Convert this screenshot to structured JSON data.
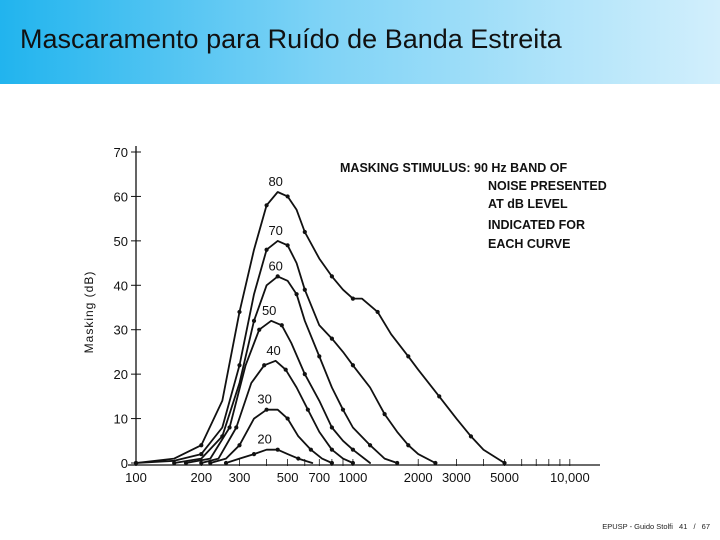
{
  "slide": {
    "title": "Mascaramento para Ruído de Banda Estreita",
    "footer_source": "EPUSP - Guido Stolfi",
    "page_number": "41",
    "page_separator": "/",
    "page_total": "67",
    "accent_color": "#21b4ee"
  },
  "chart_data": {
    "type": "line",
    "title": "",
    "xlabel": "",
    "ylabel": "Masking (dB)",
    "xscale": "log",
    "xlim": [
      100,
      12000
    ],
    "ylim": [
      0,
      70
    ],
    "x_ticks": [
      100,
      200,
      300,
      500,
      700,
      1000,
      2000,
      3000,
      5000,
      10000
    ],
    "x_tick_labels": [
      "100",
      "200",
      "300",
      "500",
      "700",
      "1000",
      "2000",
      "3000",
      "5000",
      "10,000"
    ],
    "y_ticks": [
      0,
      10,
      20,
      30,
      40,
      50,
      60,
      70
    ],
    "y_tick_labels": [
      "0",
      "10",
      "20",
      "30",
      "40",
      "50",
      "60",
      "70"
    ],
    "annotation": [
      "MASKING STIMULUS: 90 Hz BAND OF",
      "NOISE PRESENTED",
      "AT dB LEVEL",
      "INDICATED FOR",
      "EACH CURVE"
    ],
    "series": [
      {
        "name": "80",
        "points": [
          [
            100,
            0
          ],
          [
            150,
            1
          ],
          [
            200,
            4
          ],
          [
            250,
            14
          ],
          [
            300,
            34
          ],
          [
            350,
            48
          ],
          [
            400,
            58
          ],
          [
            450,
            61
          ],
          [
            500,
            60
          ],
          [
            550,
            57
          ],
          [
            600,
            52
          ],
          [
            700,
            46
          ],
          [
            800,
            42
          ],
          [
            900,
            39
          ],
          [
            1000,
            37
          ],
          [
            1100,
            37
          ],
          [
            1300,
            34
          ],
          [
            1500,
            29
          ],
          [
            1800,
            24
          ],
          [
            2000,
            21
          ],
          [
            2500,
            15
          ],
          [
            3000,
            10
          ],
          [
            3500,
            6
          ],
          [
            4000,
            3
          ],
          [
            5000,
            0
          ]
        ]
      },
      {
        "name": "70",
        "points": [
          [
            100,
            0
          ],
          [
            150,
            0.5
          ],
          [
            200,
            2
          ],
          [
            250,
            8
          ],
          [
            300,
            22
          ],
          [
            350,
            38
          ],
          [
            400,
            48
          ],
          [
            450,
            50
          ],
          [
            500,
            49
          ],
          [
            550,
            45
          ],
          [
            600,
            39
          ],
          [
            700,
            31
          ],
          [
            800,
            28
          ],
          [
            900,
            25
          ],
          [
            1000,
            22
          ],
          [
            1200,
            17
          ],
          [
            1400,
            11
          ],
          [
            1600,
            7
          ],
          [
            1800,
            4
          ],
          [
            2000,
            2
          ],
          [
            2400,
            0
          ]
        ]
      },
      {
        "name": "60",
        "points": [
          [
            150,
            0
          ],
          [
            200,
            1
          ],
          [
            250,
            6
          ],
          [
            300,
            18
          ],
          [
            350,
            32
          ],
          [
            400,
            40
          ],
          [
            450,
            42
          ],
          [
            500,
            41
          ],
          [
            550,
            38
          ],
          [
            600,
            32
          ],
          [
            700,
            24
          ],
          [
            800,
            17
          ],
          [
            900,
            12
          ],
          [
            1000,
            8
          ],
          [
            1200,
            4
          ],
          [
            1400,
            1
          ],
          [
            1600,
            0
          ]
        ]
      },
      {
        "name": "50",
        "points": [
          [
            170,
            0
          ],
          [
            220,
            1
          ],
          [
            270,
            8
          ],
          [
            320,
            22
          ],
          [
            370,
            30
          ],
          [
            420,
            32
          ],
          [
            470,
            31
          ],
          [
            520,
            27
          ],
          [
            600,
            20
          ],
          [
            700,
            14
          ],
          [
            800,
            8
          ],
          [
            900,
            5
          ],
          [
            1000,
            3
          ],
          [
            1200,
            0
          ]
        ]
      },
      {
        "name": "40",
        "points": [
          [
            200,
            0
          ],
          [
            240,
            1
          ],
          [
            290,
            8
          ],
          [
            340,
            18
          ],
          [
            390,
            22
          ],
          [
            440,
            23
          ],
          [
            490,
            21
          ],
          [
            550,
            17
          ],
          [
            620,
            12
          ],
          [
            700,
            7
          ],
          [
            800,
            3
          ],
          [
            900,
            1
          ],
          [
            1000,
            0
          ]
        ]
      },
      {
        "name": "30",
        "points": [
          [
            220,
            0
          ],
          [
            260,
            1
          ],
          [
            300,
            4
          ],
          [
            350,
            10
          ],
          [
            400,
            12
          ],
          [
            450,
            12
          ],
          [
            500,
            10
          ],
          [
            560,
            6
          ],
          [
            640,
            3
          ],
          [
            720,
            1
          ],
          [
            800,
            0
          ]
        ]
      },
      {
        "name": "20",
        "points": [
          [
            260,
            0
          ],
          [
            300,
            1
          ],
          [
            350,
            2
          ],
          [
            400,
            3
          ],
          [
            450,
            3
          ],
          [
            500,
            2
          ],
          [
            560,
            1
          ],
          [
            650,
            0
          ]
        ]
      }
    ]
  }
}
